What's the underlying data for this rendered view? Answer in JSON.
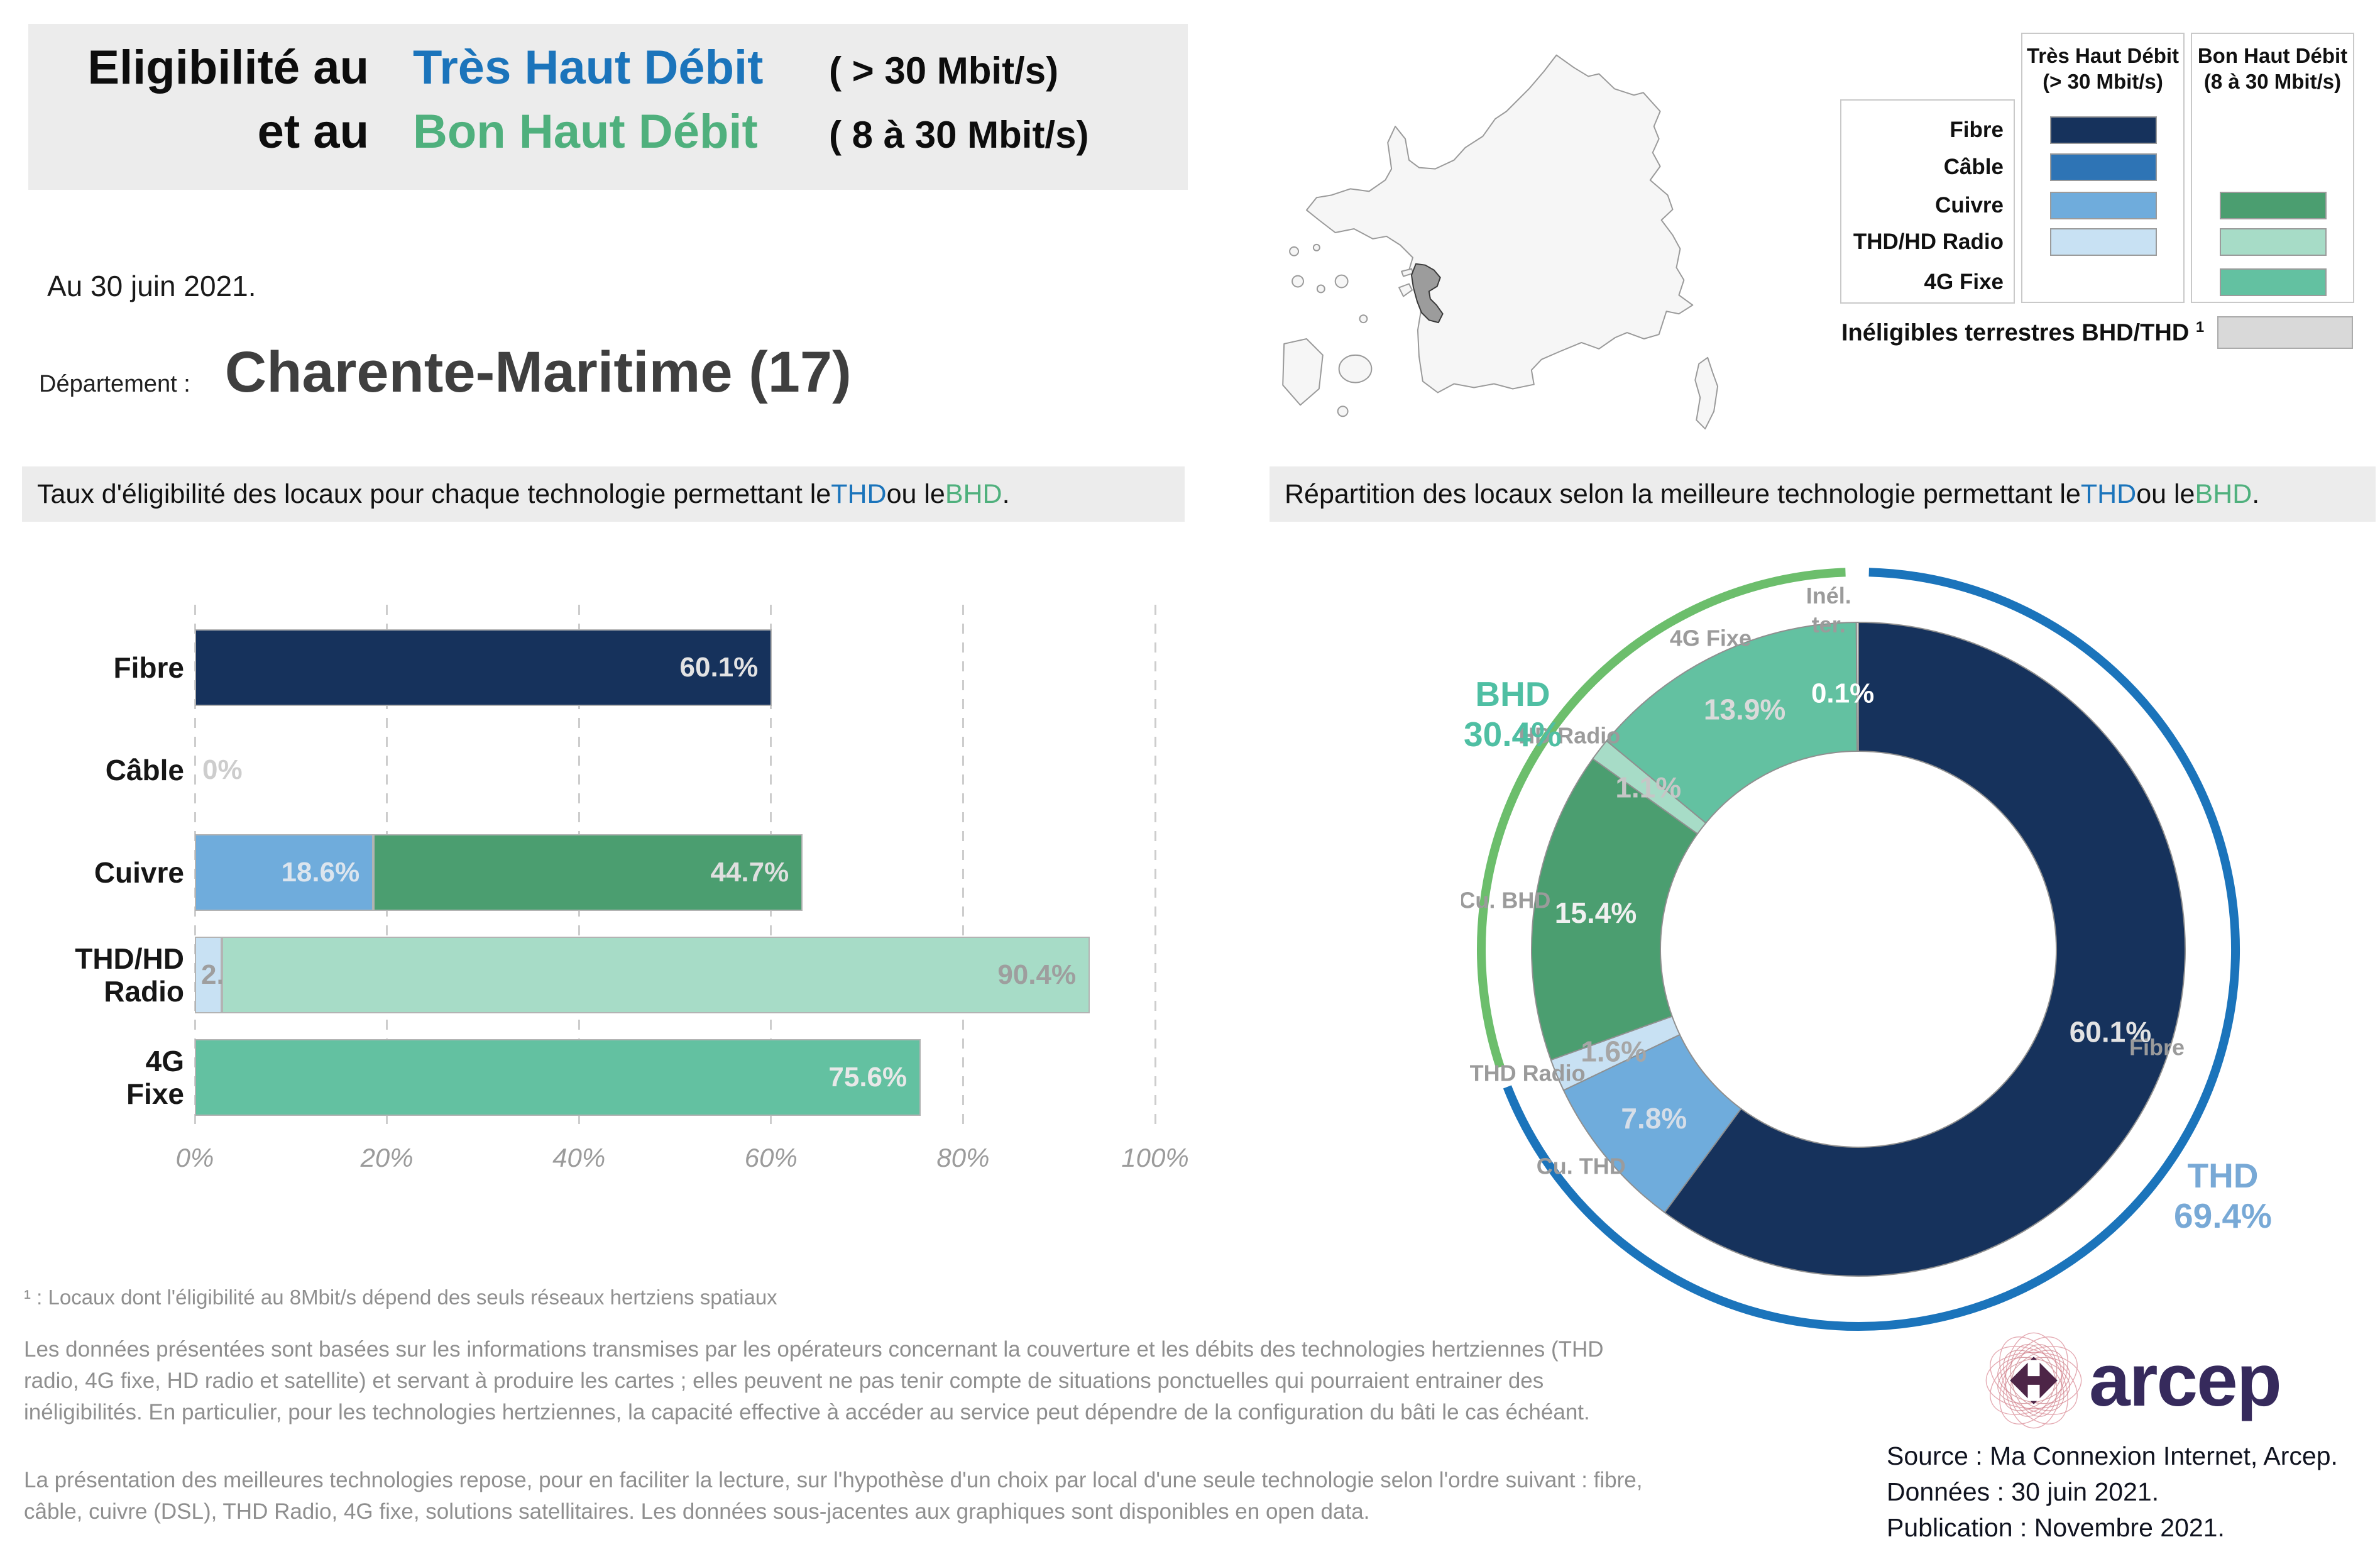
{
  "colors": {
    "thd_blue": "#1B74BB",
    "bhd_green": "#4FB07D",
    "navy": "#16325C",
    "cable_blue": "#2E74B5",
    "cuivre_thd_blue": "#6FACDC",
    "thd_radio_pale_blue": "#C8E1F3",
    "cuivre_bhd_green": "#4B9E70",
    "hd_radio_pale_green": "#A7DCC7",
    "fixe_4g_teal": "#63C1A1",
    "ineligibles_gray": "#D9D9D9",
    "arc_blue": "#1B74BB",
    "arc_green": "#6CBE6C"
  },
  "title": {
    "line1_black": "Eligibilité au",
    "line1_blue": "Très Haut Débit",
    "line1_spec": "( > 30 Mbit/s)",
    "line2_black": "et au",
    "line2_green": "Bon Haut Débit",
    "line2_spec": "( 8 à 30 Mbit/s)"
  },
  "header": {
    "date_note": "Au 30 juin 2021.",
    "department_label": "Département  :",
    "department_name": "Charente-Maritime (17)"
  },
  "subtitles": {
    "left": {
      "pre": "Taux d'éligibilité des locaux pour chaque technologie permettant le ",
      "thd": "THD",
      "mid": " ou le ",
      "bhd": "BHD",
      "end": "."
    },
    "right": {
      "pre": "Répartition des locaux selon la meilleure technologie permettant le ",
      "thd": "THD",
      "mid": " ou le ",
      "bhd": "BHD",
      "end": "."
    }
  },
  "legend": {
    "thd_header_line1": "Très Haut Débit",
    "thd_header_line2": "(> 30 Mbit/s)",
    "bhd_header_line1": "Bon Haut Débit",
    "bhd_header_line2": "(8 à 30 Mbit/s)",
    "rows": [
      {
        "label": "Fibre",
        "thd": "#16325C",
        "bhd": null
      },
      {
        "label": "Câble",
        "thd": "#2E74B5",
        "bhd": null
      },
      {
        "label": "Cuivre",
        "thd": "#6FACDC",
        "bhd": "#4B9E70"
      },
      {
        "label": "THD/HD Radio",
        "thd": "#C8E1F3",
        "bhd": "#A7DCC7"
      },
      {
        "label": "4G Fixe",
        "thd": null,
        "bhd": "#63C1A1"
      }
    ],
    "ineligibles_label": "Inéligibles terrestres BHD/THD",
    "ineligibles_sup": "1",
    "ineligibles_color": "#D9D9D9"
  },
  "map": {
    "region_name": "Charente-Maritime"
  },
  "chart_data": {
    "bar_chart": {
      "type": "bar",
      "orientation": "horizontal",
      "xlim": [
        0,
        100
      ],
      "grid": "dashed-vertical",
      "x_ticks": [
        "0%",
        "20%",
        "40%",
        "60%",
        "80%",
        "100%"
      ],
      "categories": [
        "Fibre",
        "Câble",
        "Cuivre",
        "THD/HD Radio",
        "4G Fixe"
      ],
      "series": [
        {
          "name": "THD",
          "values": [
            60.1,
            0,
            18.6,
            2.8,
            0
          ]
        },
        {
          "name": "BHD",
          "values": [
            0,
            0,
            44.7,
            90.4,
            75.6
          ]
        }
      ],
      "rows": [
        {
          "category_lines": [
            "Fibre"
          ],
          "segments": [
            {
              "series": "THD",
              "value": 60.1,
              "color": "#16325C",
              "label": "60.1%",
              "label_color": "#E3E3E3",
              "label_pos": "inside-right"
            }
          ]
        },
        {
          "category_lines": [
            "Câble"
          ],
          "segments": [],
          "zero_label": "0%",
          "zero_label_color": "#CDCDCD"
        },
        {
          "category_lines": [
            "Cuivre"
          ],
          "segments": [
            {
              "series": "THD",
              "value": 18.6,
              "color": "#6FACDC",
              "label": "18.6%",
              "label_color": "#DCE5EE",
              "label_pos": "inside-right"
            },
            {
              "series": "BHD",
              "value": 44.7,
              "color": "#4B9E70",
              "label": "44.7%",
              "label_color": "#DFDFDF",
              "label_pos": "inside-right"
            }
          ]
        },
        {
          "category_lines": [
            "THD/HD",
            "Radio"
          ],
          "segments": [
            {
              "series": "THD",
              "value": 2.8,
              "color": "#C8E1F3",
              "label": "2.8%",
              "label_color": "#9E9E9E",
              "label_pos": "outside-left"
            },
            {
              "series": "BHD",
              "value": 90.4,
              "color": "#A7DCC7",
              "label": "90.4%",
              "label_color": "#9E9E9E",
              "label_pos": "inside-right"
            }
          ]
        },
        {
          "category_lines": [
            "4G",
            "Fixe"
          ],
          "segments": [
            {
              "series": "BHD",
              "value": 75.6,
              "color": "#63C1A1",
              "label": "75.6%",
              "label_color": "#E8E8E8",
              "label_pos": "inside-right"
            }
          ]
        }
      ]
    },
    "donut_chart": {
      "type": "pie",
      "subtype": "donut",
      "units": "%",
      "slices": [
        {
          "name": "Fibre",
          "value": 60.1,
          "color": "#16325C",
          "pct_label": "60.1%",
          "pct_color": "#E3E3E3",
          "outer_label": {
            "text": "Fibre",
            "angle": 108.2,
            "radius": 500
          }
        },
        {
          "name": "Cu. THD",
          "value": 7.8,
          "color": "#6FACDC",
          "pct_label": "7.8%",
          "pct_color": "#D6DEE8",
          "outer_label": {
            "text": "Cu. THD",
            "angle": 232,
            "radius": 560
          }
        },
        {
          "name": "THD Radio",
          "value": 1.6,
          "color": "#C8E1F3",
          "pct_label": "1.6%",
          "pct_color": "#A6A6A6",
          "outer_label": {
            "text": "THD Radio",
            "angle": 249.5,
            "radius": 562
          }
        },
        {
          "name": "Cu. BHD",
          "value": 15.4,
          "color": "#4B9E70",
          "pct_label": "15.4%",
          "pct_color": "#F0F0F0",
          "outer_label": {
            "text": "Cu. BHD",
            "angle": 277.9,
            "radius": 568
          }
        },
        {
          "name": "HD Radio",
          "value": 1.1,
          "color": "#A7DCC7",
          "pct_label": "1.1%",
          "pct_color": "#C6C6C6",
          "outer_label": {
            "text": "HD Radio",
            "angle": 306.5,
            "radius": 572
          }
        },
        {
          "name": "4G Fixe",
          "value": 13.9,
          "color": "#63C1A1",
          "pct_label": "13.9%",
          "pct_color": "#DADADA",
          "outer_label": {
            "text": "4G Fixe",
            "angle": 334.6,
            "radius": 548
          }
        },
        {
          "name": "Inél. ter.",
          "value": 0.1,
          "color": "#D9D9D9",
          "pct_label": "0.1%",
          "pct_color": "#FFFFFF",
          "pct_angle": 356.5,
          "pct_radius": 408,
          "pct_size": 44,
          "outer_label": {
            "lines": [
              "Inél.",
              "ter."
            ],
            "angle": 355.2,
            "radius": 565
          }
        }
      ],
      "arcs": [
        {
          "name": "THD",
          "color": "#1B74BB",
          "from_slice": 0,
          "to_slice": 2
        },
        {
          "name": "BHD",
          "color": "#6CBE6C",
          "from_slice": 3,
          "to_slice": 5
        }
      ],
      "totals": {
        "thd": {
          "label": "THD",
          "pct": "69.4%",
          "color": "#78A9D6"
        },
        "bhd": {
          "label": "BHD",
          "pct": "30.4%",
          "color": "#4FBFA3"
        }
      }
    }
  },
  "footnotes": {
    "footnote1": "¹ : Locaux dont l'éligibilité au 8Mbit/s dépend des seuls réseaux hertziens spatiaux",
    "para1": "Les données présentées sont basées sur les informations transmises par les opérateurs concernant la couverture et les débits des technologies hertziennes (THD radio, 4G fixe, HD radio et satellite) et servant à produire les cartes ; elles peuvent ne pas tenir compte de situations ponctuelles qui pourraient entrainer des inéligibilités. En particulier, pour les technologies hertziennes, la capacité effective à accéder au service peut dépendre de la configuration du bâti le cas échéant.",
    "para2": "La présentation des meilleures technologies repose, pour en faciliter la lecture, sur l'hypothèse d'un choix par local d'une seule technologie selon l'ordre suivant : fibre, câble, cuivre (DSL), THD Radio, 4G fixe, solutions satellitaires. Les données sous-jacentes aux graphiques sont disponibles en open data."
  },
  "source": {
    "line1": "Source : Ma Connexion Internet, Arcep.",
    "line2": "Données : 30 juin 2021.",
    "line3": "Publication : Novembre 2021."
  },
  "logo": {
    "text": "arcep"
  }
}
